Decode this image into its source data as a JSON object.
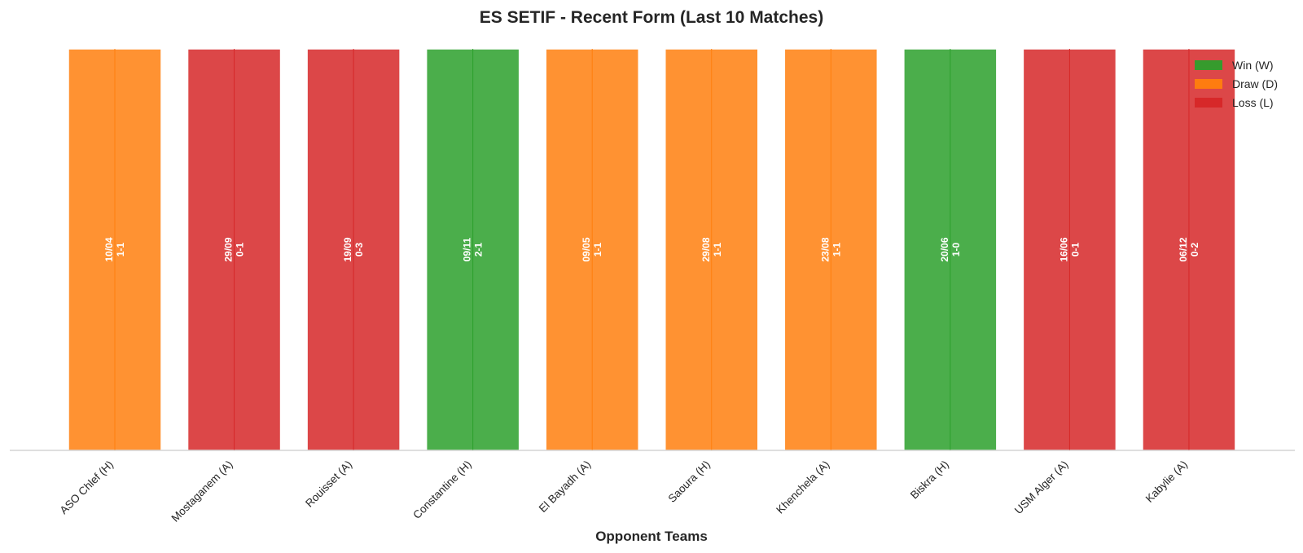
{
  "chart_data": {
    "type": "bar",
    "title": "ES SETIF - Recent Form (Last 10 Matches)",
    "xlabel": "Opponent Teams",
    "ylabel": "",
    "ylim": [
      0,
      1
    ],
    "grid": false,
    "legend_position": "top-right",
    "categories": [
      "ASO Chlef (H)",
      "Mostaganem (A)",
      "Rouisset (A)",
      "Constantine (H)",
      "El Bayadh (A)",
      "Saoura (H)",
      "Khenchela (A)",
      "Biskra (H)",
      "USM Alger (A)",
      "Kabylie (A)"
    ],
    "values": [
      1,
      1,
      1,
      1,
      1,
      1,
      1,
      1,
      1,
      1
    ],
    "results": [
      "D",
      "L",
      "L",
      "W",
      "D",
      "D",
      "D",
      "W",
      "L",
      "L"
    ],
    "dates": [
      "10/04",
      "29/09",
      "19/09",
      "09/11",
      "09/05",
      "29/08",
      "23/08",
      "20/06",
      "16/06",
      "06/12"
    ],
    "scores": [
      "1-1",
      "0-1",
      "0-3",
      "2-1",
      "1-1",
      "1-1",
      "1-1",
      "1-0",
      "0-1",
      "0-2"
    ],
    "legend": [
      {
        "key": "W",
        "label": "Win (W)",
        "color": "#2ca02c"
      },
      {
        "key": "D",
        "label": "Draw (D)",
        "color": "#ff7f0e"
      },
      {
        "key": "L",
        "label": "Loss (L)",
        "color": "#d62728"
      }
    ]
  }
}
